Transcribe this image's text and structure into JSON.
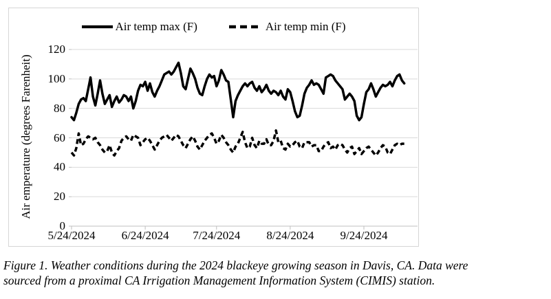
{
  "figure": {
    "caption_line1": "Figure 1. Weather conditions during the 2024 blackeye growing season in Davis, CA. Data were",
    "caption_line2": "sourced from a proximal CA Irrigation Management Information System (CIMIS) station."
  },
  "colors": {
    "series": "#000000",
    "gridline": "#d9d9d9",
    "axis": "#bfbfbf",
    "frame_border": "#d6d6d6",
    "text": "#000000"
  },
  "chart_data": {
    "type": "line",
    "title": "",
    "xlabel": "",
    "ylabel": "Air emperature (degrees Farenheit)",
    "ylim": [
      0,
      120
    ],
    "yticks": [
      0,
      20,
      40,
      60,
      80,
      100,
      120
    ],
    "grid": "horizontal",
    "legend_position": "top",
    "x_start_date": "5/24/2024",
    "x_unit": "day",
    "x_tick_labels": [
      "5/24/2024",
      "6/24/2024",
      "7/24/2024",
      "8/24/2024",
      "9/24/2024"
    ],
    "x_tick_day_index": [
      0,
      31,
      61,
      92,
      123
    ],
    "series": [
      {
        "name": "Air temp max (F)",
        "style": "solid",
        "values": [
          74,
          72,
          77,
          83,
          86,
          87,
          85,
          93,
          101,
          88,
          82,
          90,
          99,
          90,
          83,
          86,
          89,
          81,
          85,
          88,
          84,
          86,
          89,
          88,
          85,
          88,
          80,
          85,
          92,
          96,
          95,
          98,
          92,
          97,
          91,
          88,
          92,
          95,
          99,
          103,
          104,
          105,
          103,
          105,
          108,
          111,
          104,
          95,
          93,
          100,
          107,
          104,
          100,
          94,
          90,
          89,
          95,
          100,
          103,
          101,
          102,
          95,
          99,
          106,
          103,
          99,
          98,
          86,
          74,
          85,
          89,
          92,
          95,
          97,
          95,
          97,
          98,
          94,
          92,
          95,
          91,
          93,
          96,
          92,
          90,
          92,
          91,
          89,
          92,
          88,
          86,
          93,
          91,
          85,
          78,
          74,
          75,
          82,
          90,
          94,
          96,
          99,
          96,
          97,
          96,
          93,
          90,
          101,
          102,
          103,
          102,
          99,
          97,
          95,
          93,
          86,
          88,
          90,
          88,
          85,
          75,
          72,
          74,
          83,
          91,
          93,
          97,
          93,
          88,
          91,
          94,
          96,
          95,
          96,
          98,
          95,
          99,
          102,
          103,
          99,
          97
        ]
      },
      {
        "name": "Air temp min (F)",
        "style": "dashed",
        "values": [
          50,
          48,
          53,
          63,
          55,
          56,
          59,
          61,
          60,
          59,
          60,
          57,
          55,
          52,
          50,
          51,
          55,
          50,
          48,
          51,
          53,
          58,
          60,
          61,
          59,
          58,
          62,
          61,
          60,
          55,
          57,
          59,
          60,
          58,
          55,
          52,
          55,
          58,
          60,
          61,
          62,
          60,
          58,
          60,
          62,
          61,
          58,
          55,
          53,
          56,
          59,
          61,
          58,
          54,
          52,
          55,
          58,
          60,
          62,
          63,
          60,
          56,
          58,
          62,
          60,
          57,
          55,
          52,
          50,
          54,
          56,
          60,
          64,
          57,
          53,
          54,
          60,
          55,
          53,
          58,
          56,
          56,
          59,
          55,
          55,
          58,
          65,
          57,
          58,
          53,
          52,
          56,
          54,
          55,
          57,
          58,
          54,
          53,
          57,
          57,
          57,
          54,
          55,
          55,
          51,
          51,
          54,
          56,
          57,
          53,
          54,
          52,
          55,
          56,
          55,
          52,
          50,
          53,
          54,
          49,
          51,
          53,
          49,
          51,
          53,
          54,
          52,
          50,
          48,
          50,
          53,
          55,
          54,
          50,
          49,
          52,
          55,
          56,
          55,
          56,
          56
        ]
      }
    ]
  }
}
